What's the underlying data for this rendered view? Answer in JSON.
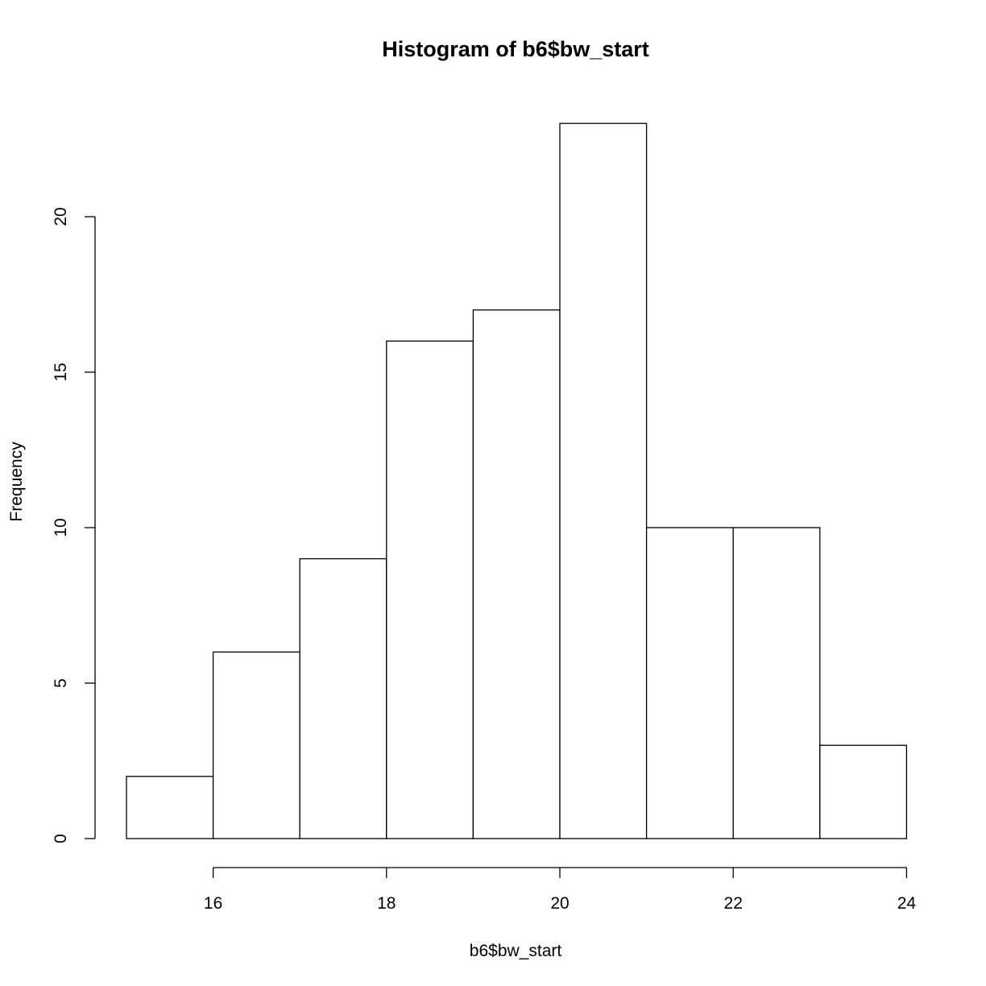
{
  "chart_data": {
    "type": "bar",
    "subtype": "histogram",
    "title": "Histogram of b6$bw_start",
    "xlabel": "b6$bw_start",
    "ylabel": "Frequency",
    "bins": [
      {
        "start": 15,
        "end": 16,
        "count": 2
      },
      {
        "start": 16,
        "end": 17,
        "count": 6
      },
      {
        "start": 17,
        "end": 18,
        "count": 9
      },
      {
        "start": 18,
        "end": 19,
        "count": 16
      },
      {
        "start": 19,
        "end": 20,
        "count": 17
      },
      {
        "start": 20,
        "end": 21,
        "count": 23
      },
      {
        "start": 21,
        "end": 22,
        "count": 10
      },
      {
        "start": 22,
        "end": 23,
        "count": 10
      },
      {
        "start": 23,
        "end": 24,
        "count": 3
      }
    ],
    "xlim": [
      15,
      24
    ],
    "ylim": [
      0,
      23
    ],
    "x_ticks": [
      "16",
      "18",
      "20",
      "22",
      "24"
    ],
    "y_ticks": [
      "0",
      "5",
      "10",
      "15",
      "20"
    ],
    "grid": false,
    "colors": {
      "bar_fill": "#ffffff",
      "bar_stroke": "#000000"
    }
  }
}
